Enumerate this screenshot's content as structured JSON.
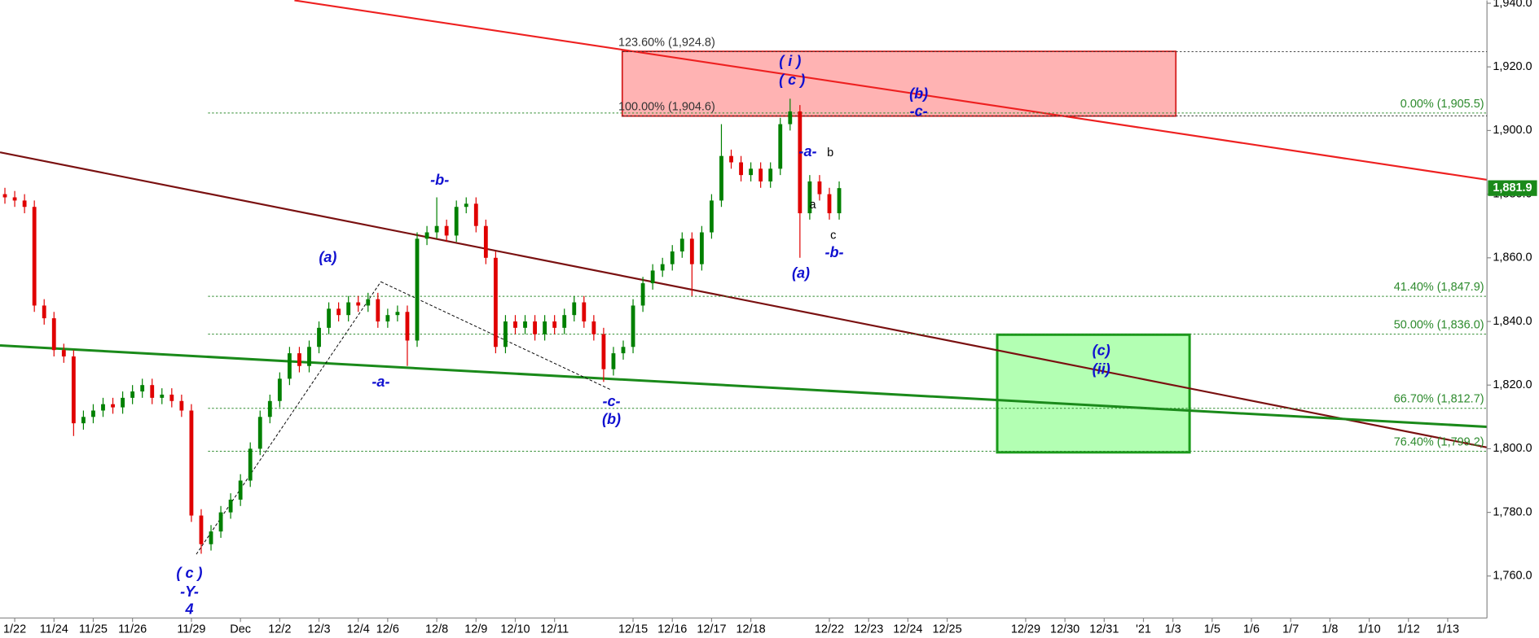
{
  "chart_data": {
    "type": "candlestick",
    "up_color": "#008000",
    "down_color": "#e00000",
    "categories": [
      null,
      "1/22",
      null,
      null,
      null,
      "11/24",
      null,
      null,
      null,
      "11/25",
      null,
      null,
      null,
      "11/26",
      null,
      null,
      null,
      null,
      null,
      "11/29",
      null,
      null,
      null,
      null,
      "Dec",
      null,
      null,
      null,
      "12/2",
      null,
      null,
      null,
      "12/3",
      null,
      null,
      null,
      "12/4",
      null,
      null,
      "12/6",
      null,
      null,
      null,
      null,
      "12/8",
      null,
      null,
      null,
      "12/9",
      null,
      null,
      null,
      "12/10",
      null,
      null,
      null,
      "12/11",
      null,
      null,
      null,
      null,
      null,
      null,
      null,
      "12/15",
      null,
      null,
      null,
      "12/16",
      null,
      null,
      null,
      "12/17",
      null,
      null,
      null,
      "12/18",
      null,
      null,
      null,
      null,
      null,
      null,
      null,
      "12/22",
      null,
      null,
      null,
      "12/23",
      null,
      null,
      null,
      "12/24",
      null,
      null,
      null,
      "12/25",
      null,
      null,
      null,
      null,
      null,
      null,
      null,
      "12/29",
      null,
      null,
      null,
      "12/30",
      null,
      null,
      null,
      "12/31",
      null,
      null,
      null,
      "'21",
      null,
      null,
      "1/3",
      null,
      null,
      null,
      "1/5",
      null,
      null,
      null,
      "1/6",
      null,
      null,
      null,
      "1/7",
      null,
      null,
      null,
      "1/8",
      null,
      null,
      null,
      "1/10",
      null,
      null,
      null,
      "1/12",
      null,
      null,
      null,
      "1/13",
      null,
      null,
      null
    ],
    "open": [
      1880,
      1879,
      1878,
      1876,
      1845,
      1841,
      1831,
      1829,
      1808,
      1810,
      1812,
      1814,
      1813,
      1816,
      1818,
      1820,
      1816,
      1817,
      1815,
      1812,
      1779,
      1770,
      1774,
      1780,
      1784,
      1790,
      1800,
      1810,
      1815,
      1822,
      1830,
      1826,
      1832,
      1838,
      1844,
      1842,
      1846,
      1845,
      1847,
      1840,
      1842,
      1843,
      1834,
      1866,
      1868,
      1870,
      1867,
      1876,
      1877,
      1870,
      1860,
      1832,
      1840,
      1838,
      1840,
      1836,
      1840,
      1838,
      1842,
      1846,
      1840,
      1836,
      1825,
      1830,
      1832,
      1845,
      1852,
      1856,
      1858,
      1862,
      1866,
      1858,
      1868,
      1878,
      1892,
      1890,
      1886,
      1888,
      1884,
      1888,
      1902,
      1906,
      1874,
      1884,
      1880,
      1874,
      null,
      null,
      null,
      null,
      null,
      null,
      null,
      null,
      null,
      null,
      null,
      null,
      null,
      null,
      null,
      null,
      null,
      null,
      null,
      null,
      null,
      null,
      null,
      null,
      null,
      null,
      null,
      null,
      null,
      null,
      null,
      null,
      null,
      null,
      null,
      null,
      null,
      null,
      null,
      null,
      null,
      null,
      null,
      null,
      null,
      null,
      null,
      null,
      null,
      null,
      null,
      null,
      null,
      null,
      null,
      null,
      null,
      null,
      null,
      null,
      null,
      null,
      null,
      null,
      null
    ],
    "high": [
      1882,
      1881,
      1880,
      1878,
      1847,
      1843,
      1833,
      1831,
      1812,
      1814,
      1816,
      1816,
      1818,
      1820,
      1822,
      1822,
      1819,
      1819,
      1817,
      1814,
      1781,
      1776,
      1782,
      1786,
      1792,
      1802,
      1812,
      1817,
      1824,
      1832,
      1832,
      1834,
      1840,
      1846,
      1846,
      1848,
      1848,
      1849,
      1849,
      1844,
      1845,
      1845,
      1868,
      1870,
      1879,
      1872,
      1878,
      1879,
      1879,
      1872,
      1862,
      1842,
      1842,
      1842,
      1842,
      1842,
      1842,
      1844,
      1848,
      1848,
      1842,
      1838,
      1832,
      1834,
      1847,
      1854,
      1858,
      1860,
      1864,
      1868,
      1868,
      1870,
      1880,
      1902,
      1894,
      1892,
      1890,
      1890,
      1890,
      1904,
      1910,
      1908,
      1886,
      1886,
      1882,
      1884,
      null,
      null,
      null,
      null,
      null,
      null,
      null,
      null,
      null,
      null,
      null,
      null,
      null,
      null,
      null,
      null,
      null,
      null,
      null,
      null,
      null,
      null,
      null,
      null,
      null,
      null,
      null,
      null,
      null,
      null,
      null,
      null,
      null,
      null,
      null,
      null,
      null,
      null,
      null,
      null,
      null,
      null,
      null,
      null,
      null,
      null,
      null,
      null,
      null,
      null,
      null,
      null,
      null,
      null,
      null,
      null,
      null,
      null,
      null,
      null,
      null,
      null,
      null,
      null,
      null
    ],
    "low": [
      1877,
      1876,
      1874,
      1843,
      1839,
      1829,
      1827,
      1804,
      1806,
      1808,
      1810,
      1811,
      1811,
      1814,
      1816,
      1814,
      1814,
      1813,
      1810,
      1777,
      1767,
      1768,
      1772,
      1778,
      1782,
      1788,
      1798,
      1808,
      1813,
      1820,
      1824,
      1824,
      1830,
      1836,
      1840,
      1840,
      1843,
      1843,
      1838,
      1838,
      1840,
      1826,
      1832,
      1864,
      1866,
      1865,
      1865,
      1874,
      1868,
      1858,
      1830,
      1830,
      1836,
      1836,
      1834,
      1834,
      1836,
      1836,
      1840,
      1838,
      1834,
      1821,
      1823,
      1828,
      1830,
      1843,
      1850,
      1854,
      1856,
      1860,
      1848,
      1856,
      1866,
      1876,
      1888,
      1884,
      1884,
      1882,
      1882,
      1886,
      1900,
      1860,
      1872,
      1878,
      1872,
      1872,
      null,
      null,
      null,
      null,
      null,
      null,
      null,
      null,
      null,
      null,
      null,
      null,
      null,
      null,
      null,
      null,
      null,
      null,
      null,
      null,
      null,
      null,
      null,
      null,
      null,
      null,
      null,
      null,
      null,
      null,
      null,
      null,
      null,
      null,
      null,
      null,
      null,
      null,
      null,
      null,
      null,
      null,
      null,
      null,
      null,
      null,
      null,
      null,
      null,
      null,
      null,
      null,
      null,
      null,
      null,
      null,
      null,
      null,
      null,
      null,
      null,
      null,
      null,
      null,
      null
    ],
    "close": [
      1879,
      1878,
      1876,
      1845,
      1841,
      1831,
      1829,
      1808,
      1810,
      1812,
      1814,
      1813,
      1816,
      1818,
      1820,
      1816,
      1817,
      1815,
      1812,
      1779,
      1770,
      1774,
      1780,
      1784,
      1790,
      1800,
      1810,
      1815,
      1822,
      1830,
      1826,
      1832,
      1838,
      1844,
      1842,
      1846,
      1845,
      1847,
      1840,
      1842,
      1843,
      1834,
      1866,
      1868,
      1870,
      1867,
      1876,
      1877,
      1870,
      1860,
      1832,
      1840,
      1838,
      1840,
      1836,
      1840,
      1838,
      1842,
      1846,
      1840,
      1836,
      1825,
      1830,
      1832,
      1845,
      1852,
      1856,
      1858,
      1862,
      1866,
      1858,
      1868,
      1878,
      1892,
      1890,
      1886,
      1888,
      1884,
      1888,
      1902,
      1906,
      1874,
      1884,
      1880,
      1874,
      1881.9,
      null,
      null,
      null,
      null,
      null,
      null,
      null,
      null,
      null,
      null,
      null,
      null,
      null,
      null,
      null,
      null,
      null,
      null,
      null,
      null,
      null,
      null,
      null,
      null,
      null,
      null,
      null,
      null,
      null,
      null,
      null,
      null,
      null,
      null,
      null,
      null,
      null,
      null,
      null,
      null,
      null,
      null,
      null,
      null,
      null,
      null,
      null,
      null,
      null,
      null,
      null,
      null,
      null,
      null,
      null,
      null,
      null,
      null,
      null,
      null,
      null,
      null,
      null,
      null,
      null
    ],
    "last_price": {
      "value": 1881.9,
      "label": "1,881.9",
      "color": "#1a8a1a"
    },
    "ylim": [
      1746.8,
      1940.9
    ],
    "yticks": [
      {
        "value": 1760,
        "label": "1,760.0"
      },
      {
        "value": 1780,
        "label": "1,780.0"
      },
      {
        "value": 1800,
        "label": "1,800.0"
      },
      {
        "value": 1820,
        "label": "1,820.0"
      },
      {
        "value": 1840,
        "label": "1,840.0"
      },
      {
        "value": 1860,
        "label": "1,860.0"
      },
      {
        "value": 1880,
        "label": "1,880.0"
      },
      {
        "value": 1900,
        "label": "1,900.0"
      },
      {
        "value": 1920,
        "label": "1,920.0"
      },
      {
        "value": 1940,
        "label": "1,940.0"
      }
    ],
    "retracement_color": "#2e8b2e",
    "retracement_levels": [
      {
        "value": 1905.5,
        "label": "0.00% (1,905.5)"
      },
      {
        "value": 1847.9,
        "label": "41.40% (1,847.9)"
      },
      {
        "value": 1836.0,
        "label": "50.00% (1,836.0)"
      },
      {
        "value": 1812.7,
        "label": "66.70% (1,812.7)"
      },
      {
        "value": 1799.2,
        "label": "76.40% (1,799.2)"
      }
    ],
    "extension_color": "#333333",
    "extension_levels": [
      {
        "value": 1924.8,
        "label": "123.60% (1,924.8)"
      },
      {
        "value": 1904.6,
        "label": "100.00% (1,904.6)"
      }
    ],
    "annotations": [
      "( i )",
      "( c )",
      "(b)",
      "-c-",
      "-a-",
      "b",
      "a",
      "c",
      "-b-",
      "(a)",
      "-b-",
      "(a)",
      "-a-",
      "-c-",
      "(b)",
      "(c)",
      "(ii)",
      "( c )",
      "-Y-",
      "4"
    ]
  }
}
